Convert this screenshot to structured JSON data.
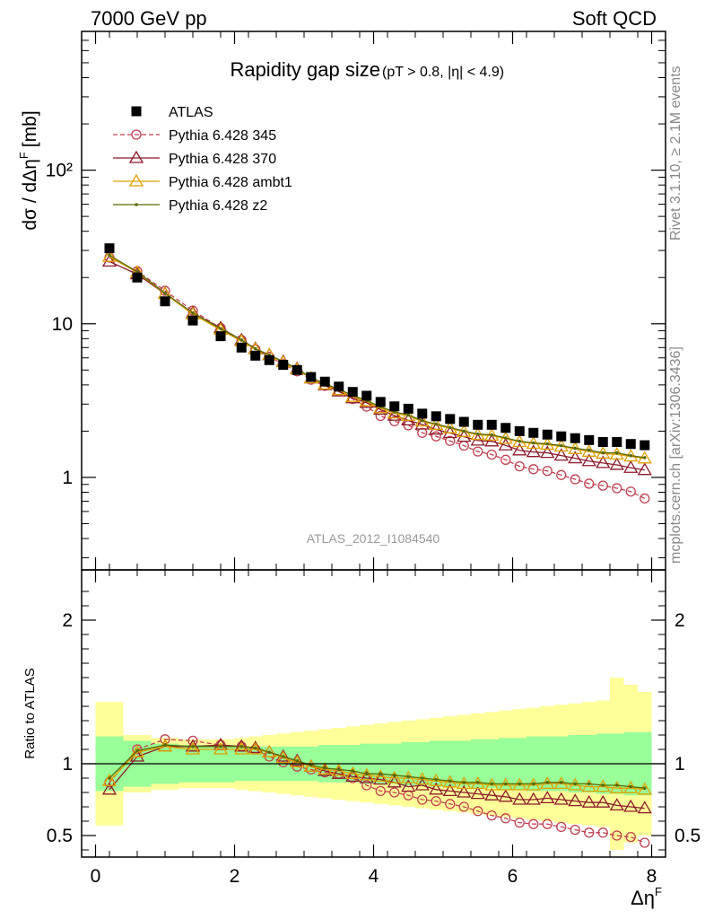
{
  "header": {
    "left": "7000 GeV pp",
    "right": "Soft QCD"
  },
  "side_labels": {
    "rivet": "Rivet 3.1.10, ≥ 2.1M events",
    "mcplots": "mcplots.cern.ch [arXiv:1306.3436]"
  },
  "chart_data": {
    "type": "scatter",
    "title": "Rapidity gap size",
    "subtitle": "(pT > 0.8, |η| < 4.9)",
    "analysis_label": "ATLAS_2012_I1084540",
    "xlabel": "Δη",
    "xlabel_sup": "F",
    "ylabel": "dσ / dΔη",
    "ylabel_sup": "F",
    "ylabel_unit": "[mb]",
    "ratio_ylabel": "Ratio to ATLAS",
    "xlim": [
      -0.2,
      8.2
    ],
    "ylim_main": [
      0.25,
      800
    ],
    "ylim_ratio": [
      0.35,
      2.35
    ],
    "y_scale_main": "log",
    "x_ticks": [
      "0",
      "2",
      "4",
      "6",
      "8"
    ],
    "main_y_ticks": [
      "1",
      "10",
      "10²"
    ],
    "ratio_y_ticks": [
      "0.5",
      "1",
      "2"
    ],
    "legend_position": "top-left",
    "x": [
      0.2,
      0.6,
      1.0,
      1.4,
      1.8,
      2.1,
      2.3,
      2.5,
      2.7,
      2.9,
      3.1,
      3.3,
      3.5,
      3.7,
      3.9,
      4.1,
      4.3,
      4.5,
      4.7,
      4.9,
      5.1,
      5.3,
      5.5,
      5.7,
      5.9,
      6.1,
      6.3,
      6.5,
      6.7,
      6.9,
      7.1,
      7.3,
      7.5,
      7.7,
      7.9
    ],
    "data": {
      "name": "ATLAS",
      "values": [
        31,
        20,
        14,
        10.5,
        8.3,
        7.0,
        6.2,
        5.8,
        5.4,
        5.0,
        4.5,
        4.2,
        3.9,
        3.6,
        3.4,
        3.1,
        2.9,
        2.8,
        2.6,
        2.5,
        2.4,
        2.3,
        2.2,
        2.2,
        2.1,
        2.0,
        1.95,
        1.9,
        1.85,
        1.8,
        1.75,
        1.7,
        1.7,
        1.65,
        1.62
      ]
    },
    "series": [
      {
        "name": "Pythia 6.428 345",
        "color": "#c04050",
        "marker": "circle",
        "dashed": true,
        "ratio": [
          0.87,
          1.1,
          1.17,
          1.16,
          1.13,
          1.12,
          1.1,
          1.05,
          1.01,
          0.98,
          0.96,
          0.94,
          0.93,
          0.9,
          0.85,
          0.81,
          0.8,
          0.78,
          0.75,
          0.74,
          0.72,
          0.7,
          0.67,
          0.64,
          0.62,
          0.59,
          0.58,
          0.58,
          0.56,
          0.54,
          0.52,
          0.52,
          0.5,
          0.49,
          0.45
        ]
      },
      {
        "name": "Pythia 6.428 370",
        "color": "#8b1a2b",
        "marker": "triangle-open",
        "dashed": false,
        "ratio": [
          0.82,
          1.05,
          1.12,
          1.12,
          1.13,
          1.12,
          1.11,
          1.08,
          1.05,
          1.02,
          0.98,
          0.95,
          0.93,
          0.91,
          0.9,
          0.89,
          0.87,
          0.84,
          0.85,
          0.82,
          0.81,
          0.8,
          0.79,
          0.78,
          0.77,
          0.75,
          0.75,
          0.76,
          0.75,
          0.74,
          0.73,
          0.73,
          0.71,
          0.7,
          0.69
        ]
      },
      {
        "name": "Pythia 6.428 ambt1",
        "color": "#e0a000",
        "marker": "triangle-open",
        "dashed": false,
        "ratio": [
          0.88,
          1.08,
          1.12,
          1.1,
          1.1,
          1.1,
          1.1,
          1.08,
          1.04,
          1.01,
          0.98,
          0.96,
          0.95,
          0.93,
          0.92,
          0.91,
          0.9,
          0.9,
          0.89,
          0.88,
          0.87,
          0.86,
          0.86,
          0.85,
          0.85,
          0.85,
          0.85,
          0.86,
          0.86,
          0.85,
          0.84,
          0.84,
          0.83,
          0.83,
          0.82
        ]
      },
      {
        "name": "Pythia 6.428 z2",
        "color": "#5a6a00",
        "marker": "dot",
        "dashed": false,
        "ratio": [
          0.9,
          1.09,
          1.13,
          1.12,
          1.12,
          1.12,
          1.11,
          1.08,
          1.05,
          1.02,
          0.99,
          0.97,
          0.96,
          0.95,
          0.93,
          0.93,
          0.92,
          0.91,
          0.9,
          0.89,
          0.88,
          0.87,
          0.87,
          0.86,
          0.86,
          0.86,
          0.86,
          0.87,
          0.87,
          0.86,
          0.86,
          0.85,
          0.85,
          0.84,
          0.83
        ]
      }
    ],
    "bands": {
      "green_color": "#99ff99",
      "yellow_color": "#ffff99",
      "x_edges": [
        0.0,
        0.4,
        0.8,
        1.2,
        1.6,
        2.0,
        2.2,
        2.4,
        2.6,
        2.8,
        3.0,
        3.2,
        3.4,
        3.6,
        3.8,
        4.0,
        4.2,
        4.4,
        4.6,
        4.8,
        5.0,
        5.2,
        5.4,
        5.6,
        5.8,
        6.0,
        6.2,
        6.4,
        6.6,
        6.8,
        7.0,
        7.2,
        7.4,
        7.6,
        7.8,
        8.0
      ],
      "green_half": [
        0.19,
        0.16,
        0.14,
        0.13,
        0.13,
        0.12,
        0.12,
        0.12,
        0.12,
        0.12,
        0.12,
        0.13,
        0.13,
        0.13,
        0.14,
        0.14,
        0.14,
        0.15,
        0.15,
        0.16,
        0.16,
        0.16,
        0.17,
        0.17,
        0.18,
        0.18,
        0.19,
        0.19,
        0.19,
        0.2,
        0.2,
        0.21,
        0.21,
        0.22,
        0.22
      ],
      "yellow_half": [
        0.43,
        0.2,
        0.18,
        0.17,
        0.17,
        0.18,
        0.19,
        0.2,
        0.21,
        0.22,
        0.23,
        0.24,
        0.25,
        0.26,
        0.27,
        0.28,
        0.29,
        0.3,
        0.31,
        0.32,
        0.33,
        0.34,
        0.35,
        0.36,
        0.37,
        0.38,
        0.39,
        0.4,
        0.41,
        0.42,
        0.43,
        0.44,
        0.6,
        0.55,
        0.5
      ]
    }
  }
}
